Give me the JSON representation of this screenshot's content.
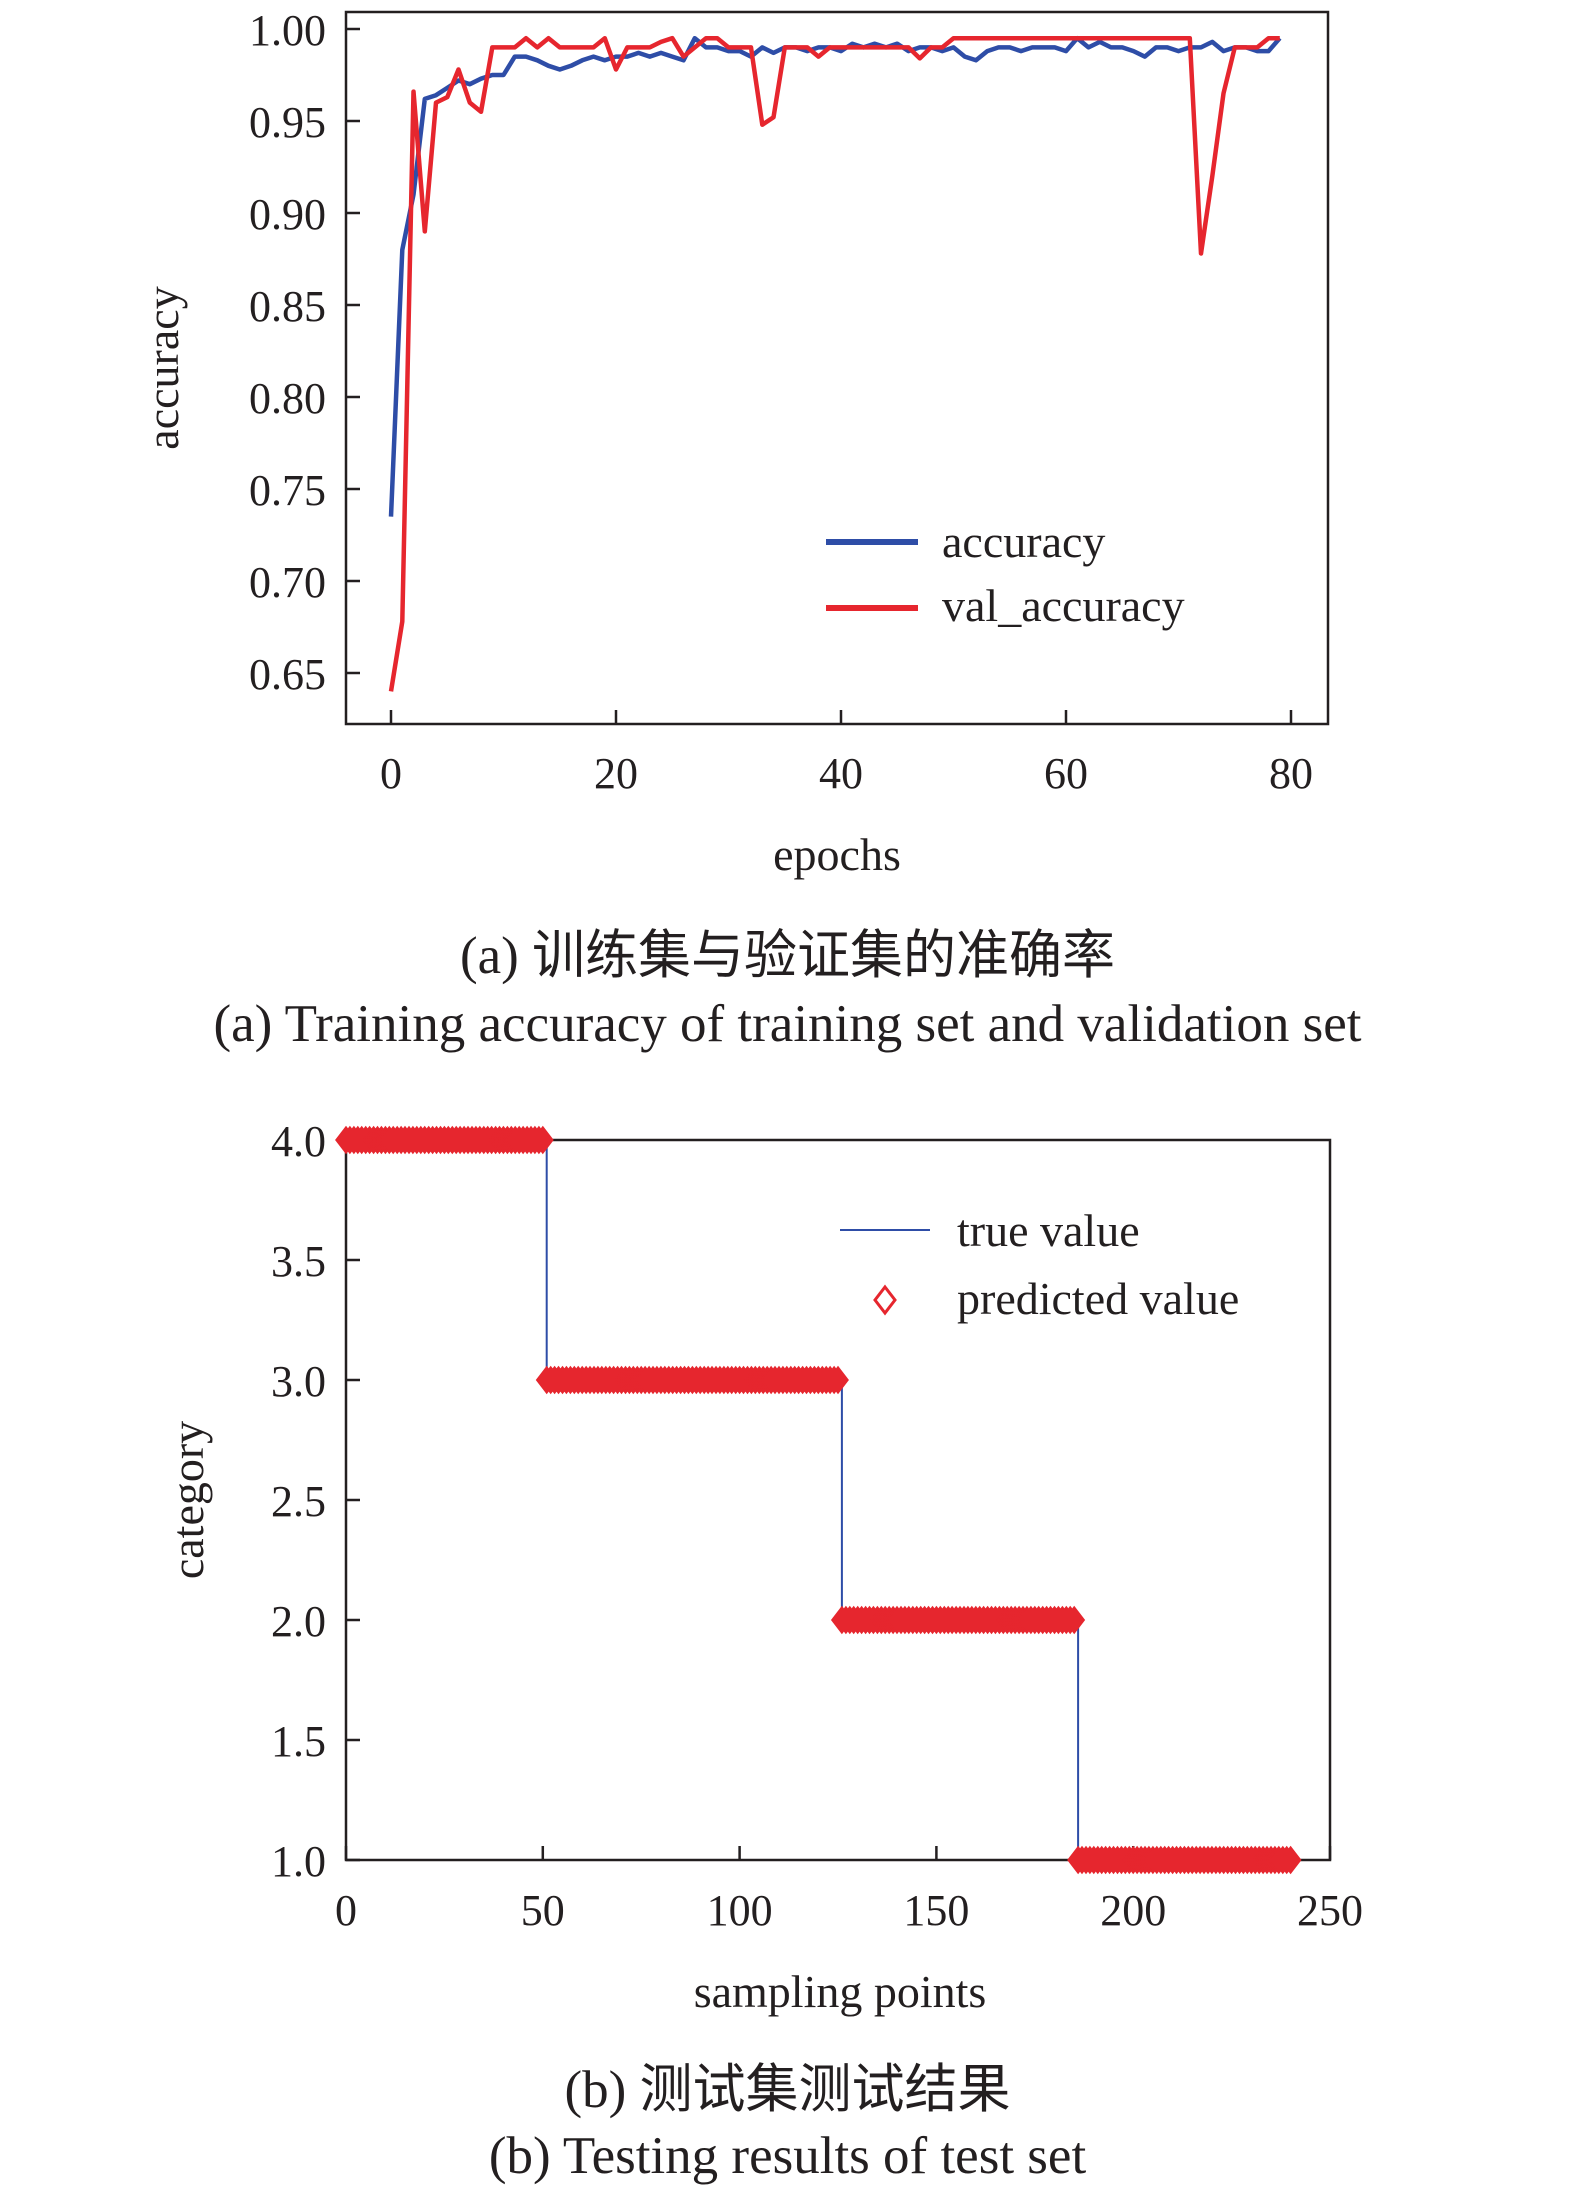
{
  "captions": {
    "a_cn": "(a) 训练集与验证集的准确率",
    "a_en": "(a) Training accuracy of training set and validation set",
    "b_cn": "(b) 测试集测试结果",
    "b_en": "(b) Testing results of test set"
  },
  "chart_data": [
    {
      "type": "line",
      "xlabel": "epochs",
      "ylabel": "accuracy",
      "xlim": [
        -5,
        82
      ],
      "ylim": [
        0.625,
        1.0
      ],
      "xticks": [
        0,
        20,
        40,
        60,
        80
      ],
      "yticks": [
        0.65,
        0.7,
        0.75,
        0.8,
        0.85,
        0.9,
        0.95,
        1.0
      ],
      "ytick_labels": [
        "0.65",
        "0.70",
        "0.75",
        "0.80",
        "0.85",
        "0.90",
        "0.95",
        "1.00"
      ],
      "legend_position": "lower-right",
      "grid": false,
      "series": [
        {
          "name": "accuracy",
          "color": "#2e4da7",
          "x": [
            0,
            1,
            2,
            3,
            4,
            5,
            6,
            7,
            8,
            9,
            10,
            11,
            12,
            13,
            14,
            15,
            16,
            17,
            18,
            19,
            20,
            21,
            22,
            23,
            24,
            25,
            26,
            27,
            28,
            29,
            30,
            31,
            32,
            33,
            34,
            35,
            36,
            37,
            38,
            39,
            40,
            41,
            42,
            43,
            44,
            45,
            46,
            47,
            48,
            49,
            50,
            51,
            52,
            53,
            54,
            55,
            56,
            57,
            58,
            59,
            60,
            61,
            62,
            63,
            64,
            65,
            66,
            67,
            68,
            69,
            70,
            71,
            72,
            73,
            74,
            75,
            76,
            77,
            78,
            79
          ],
          "y": [
            0.735,
            0.88,
            0.91,
            0.962,
            0.964,
            0.968,
            0.972,
            0.97,
            0.973,
            0.975,
            0.975,
            0.985,
            0.985,
            0.983,
            0.98,
            0.978,
            0.98,
            0.983,
            0.985,
            0.983,
            0.985,
            0.985,
            0.987,
            0.985,
            0.987,
            0.985,
            0.983,
            0.995,
            0.99,
            0.99,
            0.988,
            0.988,
            0.985,
            0.99,
            0.987,
            0.99,
            0.99,
            0.988,
            0.99,
            0.99,
            0.988,
            0.992,
            0.99,
            0.992,
            0.99,
            0.992,
            0.988,
            0.99,
            0.99,
            0.988,
            0.99,
            0.985,
            0.983,
            0.988,
            0.99,
            0.99,
            0.988,
            0.99,
            0.99,
            0.99,
            0.988,
            0.995,
            0.99,
            0.993,
            0.99,
            0.99,
            0.988,
            0.985,
            0.99,
            0.99,
            0.988,
            0.99,
            0.99,
            0.993,
            0.988,
            0.99,
            0.99,
            0.988,
            0.988,
            0.995
          ]
        },
        {
          "name": "val_accuracy",
          "color": "#e6262e",
          "x": [
            0,
            1,
            2,
            3,
            4,
            5,
            6,
            7,
            8,
            9,
            10,
            11,
            12,
            13,
            14,
            15,
            16,
            17,
            18,
            19,
            20,
            21,
            22,
            23,
            24,
            25,
            26,
            27,
            28,
            29,
            30,
            31,
            32,
            33,
            34,
            35,
            36,
            37,
            38,
            39,
            40,
            41,
            42,
            43,
            44,
            45,
            46,
            47,
            48,
            49,
            50,
            51,
            52,
            53,
            54,
            55,
            56,
            57,
            58,
            59,
            60,
            61,
            62,
            63,
            64,
            65,
            66,
            67,
            68,
            69,
            70,
            71,
            72,
            73,
            74,
            75,
            76,
            77,
            78,
            79
          ],
          "y": [
            0.64,
            0.678,
            0.966,
            0.89,
            0.96,
            0.963,
            0.978,
            0.96,
            0.955,
            0.99,
            0.99,
            0.99,
            0.995,
            0.99,
            0.995,
            0.99,
            0.99,
            0.99,
            0.99,
            0.995,
            0.978,
            0.99,
            0.99,
            0.99,
            0.993,
            0.995,
            0.985,
            0.99,
            0.995,
            0.995,
            0.99,
            0.99,
            0.99,
            0.948,
            0.952,
            0.99,
            0.99,
            0.99,
            0.985,
            0.99,
            0.99,
            0.99,
            0.99,
            0.99,
            0.99,
            0.99,
            0.99,
            0.984,
            0.99,
            0.99,
            0.995,
            0.995,
            0.995,
            0.995,
            0.995,
            0.995,
            0.995,
            0.995,
            0.995,
            0.995,
            0.995,
            0.995,
            0.995,
            0.995,
            0.995,
            0.995,
            0.995,
            0.995,
            0.995,
            0.995,
            0.995,
            0.995,
            0.878,
            0.92,
            0.965,
            0.99,
            0.99,
            0.99,
            0.995,
            0.995
          ]
        }
      ]
    },
    {
      "type": "scatter",
      "xlabel": "sampling points",
      "ylabel": "category",
      "xlim": [
        0,
        250
      ],
      "ylim": [
        1.0,
        4.0
      ],
      "xticks": [
        0,
        50,
        100,
        150,
        200,
        250
      ],
      "yticks": [
        1.0,
        1.5,
        2.0,
        2.5,
        3.0,
        3.5,
        4.0
      ],
      "ytick_labels": [
        "1.0",
        "1.5",
        "2.0",
        "2.5",
        "3.0",
        "3.5",
        "4.0"
      ],
      "legend_position": "upper-right",
      "grid": false,
      "series": [
        {
          "name": "true value",
          "kind": "step-line",
          "color": "#2e4da7",
          "segments": [
            {
              "from": 0,
              "to": 51,
              "value": 4
            },
            {
              "from": 51,
              "to": 126,
              "value": 3
            },
            {
              "from": 126,
              "to": 186,
              "value": 2
            },
            {
              "from": 186,
              "to": 241,
              "value": 1
            }
          ]
        },
        {
          "name": "predicted value",
          "kind": "diamond-markers",
          "color": "#e6262e",
          "segments": [
            {
              "from": 0,
              "to": 50,
              "value": 4
            },
            {
              "from": 51,
              "to": 125,
              "value": 3
            },
            {
              "from": 126,
              "to": 185,
              "value": 2
            },
            {
              "from": 186,
              "to": 240,
              "value": 1
            }
          ]
        }
      ]
    }
  ]
}
